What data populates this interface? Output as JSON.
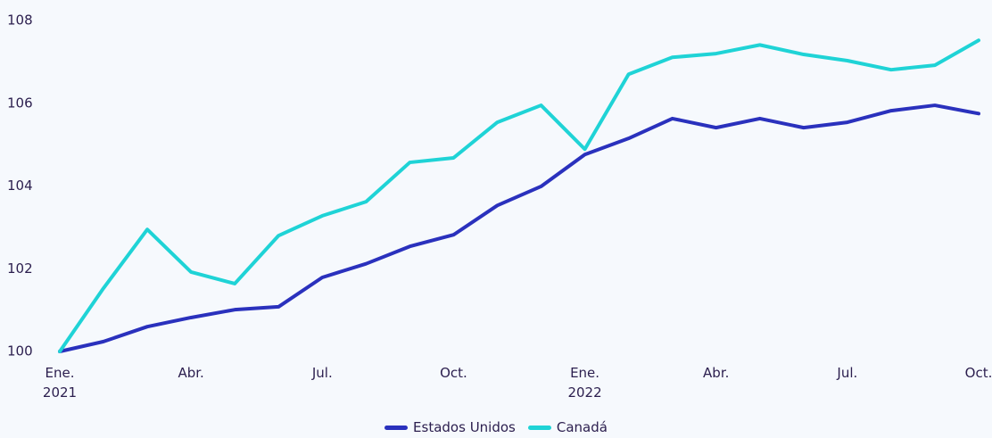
{
  "chart_data": {
    "type": "line",
    "categories": [
      "Ene.\n2021",
      null,
      null,
      "Abr.",
      null,
      null,
      "Jul.",
      null,
      null,
      "Oct.",
      null,
      null,
      "Ene.\n2022",
      null,
      null,
      "Abr.",
      null,
      null,
      "Jul.",
      null,
      null,
      "Oct."
    ],
    "series": [
      {
        "name": "Estados Unidos",
        "color": "#2a31bd",
        "values": [
          100,
          100.24,
          100.6,
          100.82,
          101.01,
          101.08,
          101.79,
          102.12,
          102.54,
          102.82,
          103.53,
          103.99,
          104.76,
          105.15,
          105.63,
          105.41,
          105.63,
          105.41,
          105.54,
          105.82,
          105.95,
          105.75
        ]
      },
      {
        "name": "Canadá",
        "color": "#1fd3d6",
        "values": [
          100,
          101.53,
          102.95,
          101.92,
          101.64,
          102.8,
          103.28,
          103.62,
          104.57,
          104.68,
          105.54,
          105.95,
          104.89,
          106.7,
          107.11,
          107.2,
          107.41,
          107.18,
          107.03,
          106.81,
          106.92,
          107.52
        ]
      }
    ],
    "ylim": [
      100,
      108
    ],
    "yticks": [
      100,
      102,
      104,
      106,
      108
    ],
    "grid": false,
    "legend": "bottom"
  }
}
